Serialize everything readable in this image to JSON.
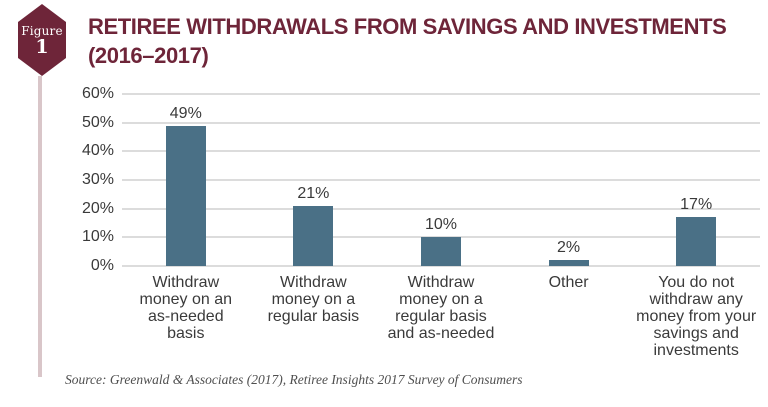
{
  "badge": {
    "label": "Figure",
    "number": "1"
  },
  "header": {
    "title_line1": "RETIREE WITHDRAWALS FROM SAVINGS AND INVESTMENTS",
    "title_line2": "(2016–2017)"
  },
  "source": "Source: Greenwald & Associates (2017), Retiree Insights 2017 Survey of Consumers",
  "colors": {
    "maroon": "#6e2539",
    "bar": "#4a7086",
    "gridline": "#dcdcdc",
    "text": "#3a3a3a",
    "accent_line": "#d9c6c9"
  },
  "chart_data": {
    "type": "bar",
    "title": "RETIREE WITHDRAWALS FROM SAVINGS AND INVESTMENTS (2016–2017)",
    "categories": [
      "Withdraw\nmoney on an\nas-needed\nbasis",
      "Withdraw\nmoney on a\nregular basis",
      "Withdraw\nmoney on a\nregular basis\nand as-needed",
      "Other",
      "You do not\nwithdraw any\nmoney from your\nsavings and\ninvestments"
    ],
    "values": [
      49,
      21,
      10,
      2,
      17
    ],
    "value_labels": [
      "49%",
      "21%",
      "10%",
      "2%",
      "17%"
    ],
    "y_ticks": [
      "0%",
      "10%",
      "20%",
      "30%",
      "40%",
      "50%",
      "60%"
    ],
    "ylim": [
      0,
      60
    ],
    "grid": "horizontal",
    "legend": "none",
    "bar_color": "#4a7086",
    "xlabel": "",
    "ylabel": ""
  }
}
